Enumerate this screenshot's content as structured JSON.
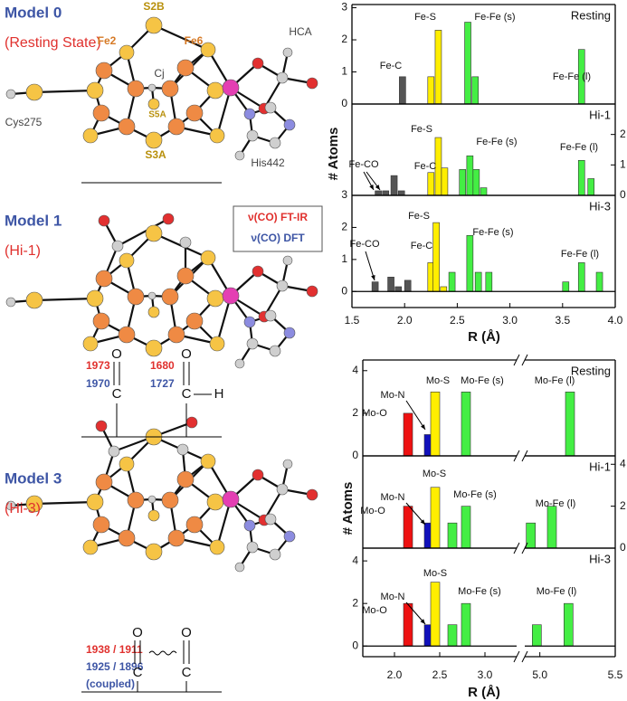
{
  "models": [
    {
      "title": "Model 0",
      "state": "(Resting State)",
      "atom_labels": [
        "S2B",
        "Fe2",
        "Fe6",
        "HCA",
        "Cj",
        "S5A",
        "S3A",
        "Cys275",
        "His442"
      ]
    },
    {
      "title": "Model 1",
      "state": "(Hi-1)",
      "frequencies_ir": [
        "1973",
        "1680"
      ],
      "frequencies_dft": [
        "1970",
        "1727"
      ],
      "groups": [
        "O",
        "C",
        "O",
        "C",
        "H"
      ]
    },
    {
      "title": "Model 3",
      "state": "(Hi-3)",
      "frequencies_ir": [
        "1938 / 1911"
      ],
      "frequencies_dft": [
        "1925 / 1896"
      ],
      "note": "(coupled)",
      "groups": [
        "O",
        "C",
        "O",
        "C"
      ]
    }
  ],
  "legend": [
    "ν(CO) FT-IR",
    "ν(CO) DFT"
  ],
  "chart_data": [
    {
      "type": "bar",
      "xlabel": "R (Å)",
      "ylabel": "# Atoms",
      "xlim": [
        1.5,
        4.0
      ],
      "xticks": [
        1.5,
        {
          "value": 2,
          "label": "2.0"
        },
        2.5,
        {
          "value": 3,
          "label": "3.0"
        },
        3.5,
        {
          "value": 4,
          "label": "4.0"
        }
      ],
      "panels": [
        {
          "label": "Resting",
          "ylim": [
            0,
            3.1
          ],
          "yticks": [
            0,
            1,
            2,
            3
          ],
          "axis_side": "left",
          "annotations": [
            "Fe-C",
            "Fe-S",
            "Fe-Fe (s)",
            "Fe-Fe (l)"
          ],
          "series": [
            {
              "color": "#555555",
              "x": [
                1.98
              ],
              "values": [
                0.85
              ]
            },
            {
              "color": "#ffee00",
              "x": [
                2.25,
                2.32
              ],
              "values": [
                0.85,
                2.3
              ]
            },
            {
              "color": "#44ee44",
              "x": [
                2.6,
                2.67,
                3.68
              ],
              "values": [
                2.55,
                0.85,
                1.7
              ]
            }
          ]
        },
        {
          "label": "Hi-1",
          "ylim": [
            0,
            3
          ],
          "yticks": [
            0,
            1,
            2
          ],
          "axis_side": "right",
          "annotations": [
            "Fe-CO",
            "Fe-C",
            "Fe-S",
            "Fe-Fe (s)",
            "Fe-Fe (l)"
          ],
          "series": [
            {
              "color": "#555555",
              "x": [
                1.75,
                1.82,
                1.9,
                1.97
              ],
              "values": [
                0.15,
                0.15,
                0.65,
                0.15
              ]
            },
            {
              "color": "#ffee00",
              "x": [
                2.25,
                2.32,
                2.38
              ],
              "values": [
                0.75,
                1.9,
                0.9
              ]
            },
            {
              "color": "#44ee44",
              "x": [
                2.55,
                2.62,
                2.68,
                2.75,
                3.68,
                3.77
              ],
              "values": [
                0.85,
                1.3,
                0.85,
                0.25,
                1.15,
                0.55
              ]
            }
          ]
        },
        {
          "label": "Hi-3",
          "ylim": [
            -0.5,
            3
          ],
          "yticks": [
            0,
            1,
            2,
            3
          ],
          "axis_side": "left",
          "annotations": [
            "Fe-CO",
            "Fe-C",
            "Fe-S",
            "Fe-Fe (s)",
            "Fe-Fe (l)"
          ],
          "series": [
            {
              "color": "#555555",
              "x": [
                1.72,
                1.87,
                1.94,
                2.03
              ],
              "values": [
                0.3,
                0.45,
                0.15,
                0.35
              ]
            },
            {
              "color": "#ffee00",
              "x": [
                2.25,
                2.3,
                2.37
              ],
              "values": [
                0.9,
                2.15,
                0.15
              ]
            },
            {
              "color": "#44ee44",
              "x": [
                2.45,
                2.62,
                2.7,
                2.8,
                3.53,
                3.68,
                3.85
              ],
              "values": [
                0.6,
                1.75,
                0.6,
                0.6,
                0.3,
                0.9,
                0.6
              ]
            }
          ]
        }
      ]
    },
    {
      "type": "bar",
      "xlabel": "R (Å)",
      "ylabel": "# Atoms",
      "xlim": [
        1.65,
        5.5
      ],
      "xbreak": [
        3.35,
        4.9
      ],
      "xticks": [
        {
          "value": 2,
          "label": "2.0"
        },
        2.5,
        {
          "value": 3,
          "label": "3.0"
        },
        {
          "value": 5,
          "label": "5.0"
        },
        5.5
      ],
      "panels": [
        {
          "label": "Resting",
          "ylim": [
            0,
            4.5
          ],
          "yticks": [
            0,
            2,
            4
          ],
          "axis_side": "left",
          "annotations": [
            "Mo-O",
            "Mo-N",
            "Mo-S",
            "Mo-Fe (s)",
            "Mo-Fe (l)"
          ],
          "series": [
            {
              "color": "#ee1111",
              "x": [
                2.15
              ],
              "values": [
                2
              ]
            },
            {
              "color": "#1111bb",
              "x": [
                2.38
              ],
              "values": [
                1
              ]
            },
            {
              "color": "#ffee00",
              "x": [
                2.45
              ],
              "values": [
                3
              ]
            },
            {
              "color": "#44ee44",
              "x": [
                2.79,
                5.2
              ],
              "values": [
                3,
                3
              ]
            }
          ]
        },
        {
          "label": "Hi-1",
          "ylim": [
            0,
            4.4
          ],
          "yticks": [
            0,
            2,
            4
          ],
          "axis_side": "right",
          "annotations": [
            "Mo-O",
            "Mo-N",
            "Mo-S",
            "Mo-Fe (s)",
            "Mo-Fe (l)"
          ],
          "series": [
            {
              "color": "#ee1111",
              "x": [
                2.15
              ],
              "values": [
                2
              ]
            },
            {
              "color": "#1111bb",
              "x": [
                2.38
              ],
              "values": [
                1.2
              ]
            },
            {
              "color": "#ffee00",
              "x": [
                2.45
              ],
              "values": [
                2.9
              ]
            },
            {
              "color": "#44ee44",
              "x": [
                2.64,
                2.79,
                4.94,
                5.08
              ],
              "values": [
                1.2,
                2,
                1.2,
                2
              ]
            }
          ]
        },
        {
          "label": "Hi-3",
          "ylim": [
            -0.5,
            4.6
          ],
          "yticks": [
            0,
            2,
            4
          ],
          "axis_side": "left",
          "annotations": [
            "Mo-O",
            "Mo-N",
            "Mo-S",
            "Mo-Fe (s)",
            "Mo-Fe (l)"
          ],
          "series": [
            {
              "color": "#ee1111",
              "x": [
                2.15
              ],
              "values": [
                2
              ]
            },
            {
              "color": "#1111bb",
              "x": [
                2.38
              ],
              "values": [
                1
              ]
            },
            {
              "color": "#ffee00",
              "x": [
                2.45
              ],
              "values": [
                3
              ]
            },
            {
              "color": "#44ee44",
              "x": [
                2.64,
                2.79,
                4.98,
                5.19
              ],
              "values": [
                1,
                2,
                1,
                2
              ]
            }
          ]
        }
      ]
    }
  ]
}
